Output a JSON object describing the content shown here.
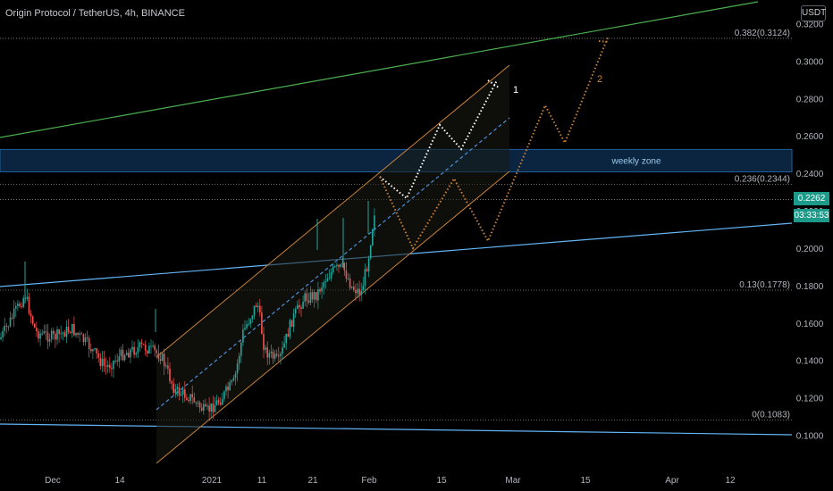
{
  "header": {
    "title": "Origin Protocol / TetherUS, 4h, BINANCE",
    "unit": "USDT"
  },
  "price_tag": {
    "last": "0.2262",
    "countdown": "03:33:53"
  },
  "colors": {
    "background": "#000000",
    "up_candle": "#26a69a",
    "down_candle": "#ef5350",
    "channel": "#c8823c",
    "channel_mid": "#4a90d9",
    "green_line": "#4caf50",
    "blue_line": "#64b5f6",
    "zone_fill": "#0d2a4a",
    "zone_border": "#1f5f9f",
    "fib_line": "#8a8a8a",
    "price_tag": "#1e9a8a",
    "path1": "#ffffff",
    "path2": "#c8823c"
  },
  "chart_data": {
    "type": "candlestick",
    "title": "Origin Protocol / TetherUS, 4h, BINANCE",
    "y_axis": {
      "ticks": [
        "0.1000",
        "0.1200",
        "0.1400",
        "0.1600",
        "0.1800",
        "0.2000",
        "0.2200",
        "0.2400",
        "0.2600",
        "0.2800",
        "0.3000",
        "0.3200"
      ],
      "ylim": [
        0.0945,
        0.324
      ]
    },
    "x_axis": {
      "ticks": [
        "Dec",
        "14",
        "2021",
        "11",
        "21",
        "Feb",
        "15",
        "Mar",
        "15",
        "Apr",
        "12"
      ]
    },
    "fib_levels": [
      {
        "label": "0.382(0.3124)",
        "value": 0.3124
      },
      {
        "label": "0.236(0.2344)",
        "value": 0.2344
      },
      {
        "label": "0.13(0.1778)",
        "value": 0.1778
      },
      {
        "label": "0(0.1083)",
        "value": 0.1083
      }
    ],
    "zone": {
      "label": "weekly zone",
      "low": 0.241,
      "high": 0.253
    },
    "extra_level": 0.2262,
    "path_labels": [
      "1",
      "2"
    ],
    "grid": false
  }
}
